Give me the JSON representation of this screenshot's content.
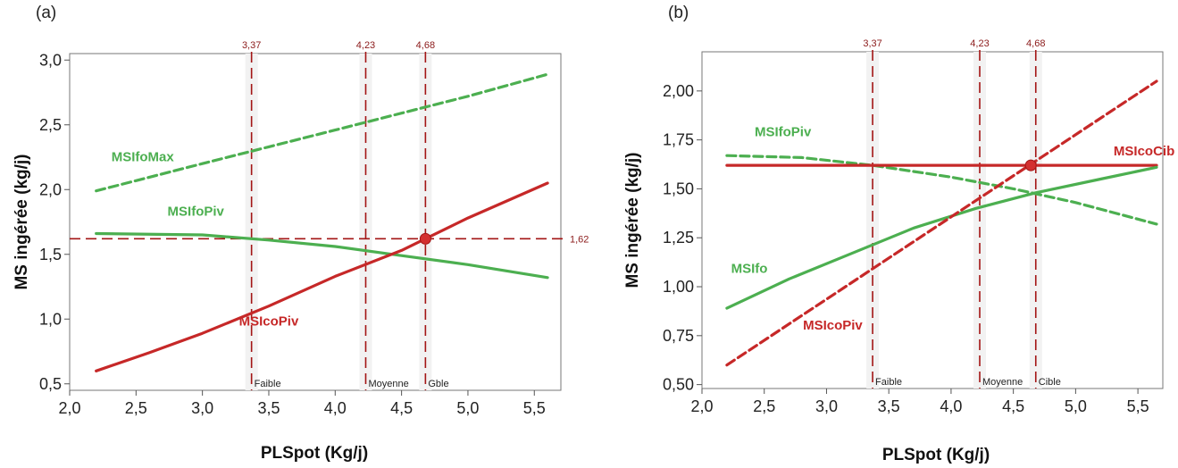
{
  "colors": {
    "green": "#4caf50",
    "red": "#c62828",
    "refline": "#a31515"
  },
  "chart_data": [
    {
      "panel": "(a)",
      "type": "line",
      "xlabel": "PLSpot (Kg/j)",
      "ylabel": "MS ingérée (kg/j)",
      "xlim": [
        2.0,
        5.7
      ],
      "ylim": [
        0.45,
        3.05
      ],
      "xticks": [
        2.0,
        2.5,
        3.0,
        3.5,
        4.0,
        4.5,
        5.0,
        5.5
      ],
      "xtick_labels": [
        "2,0",
        "2,5",
        "3,0",
        "3,5",
        "4,0",
        "4,5",
        "5,0",
        "5,5"
      ],
      "yticks": [
        0.5,
        1.0,
        1.5,
        2.0,
        2.5,
        3.0
      ],
      "ytick_labels": [
        "0,5",
        "1,0",
        "1,5",
        "2,0",
        "2,5",
        "3,0"
      ],
      "series": [
        {
          "name": "MSIfoMax",
          "color": "green",
          "dash": true,
          "x": [
            2.2,
            3.0,
            3.5,
            4.0,
            4.5,
            5.0,
            5.6
          ],
          "y": [
            1.99,
            2.2,
            2.33,
            2.46,
            2.59,
            2.72,
            2.89
          ],
          "label_at": [
            2.55,
            2.22
          ]
        },
        {
          "name": "MSIfoPiv",
          "color": "green",
          "dash": false,
          "x": [
            2.2,
            3.0,
            3.5,
            4.0,
            4.5,
            5.0,
            5.6
          ],
          "y": [
            1.66,
            1.65,
            1.61,
            1.56,
            1.49,
            1.42,
            1.32
          ],
          "label_at": [
            2.95,
            1.8
          ]
        },
        {
          "name": "MSIcoPiv",
          "color": "red",
          "dash": false,
          "x": [
            2.2,
            2.6,
            3.0,
            3.5,
            4.0,
            4.5,
            4.68,
            5.0,
            5.6
          ],
          "y": [
            0.6,
            0.74,
            0.89,
            1.1,
            1.33,
            1.53,
            1.62,
            1.78,
            2.05
          ],
          "label_at": [
            3.5,
            0.95
          ]
        }
      ],
      "vlines": [
        {
          "x": 3.37,
          "label": "3,37",
          "category": "Faible"
        },
        {
          "x": 4.23,
          "label": "4,23",
          "category": "Moyenne"
        },
        {
          "x": 4.68,
          "label": "4,68",
          "category": "Gble"
        }
      ],
      "hline": {
        "y": 1.62,
        "label": "1,62"
      },
      "marker": {
        "x": 4.68,
        "y": 1.62
      }
    },
    {
      "panel": "(b)",
      "type": "line",
      "xlabel": "PLSpot (Kg/j)",
      "ylabel": "MS ingérée (kg/j)",
      "xlim": [
        2.0,
        5.7
      ],
      "ylim": [
        0.48,
        2.2
      ],
      "xticks": [
        2.0,
        2.5,
        3.0,
        3.5,
        4.0,
        4.5,
        5.0,
        5.5
      ],
      "xtick_labels": [
        "2,0",
        "2,5",
        "3,0",
        "3,5",
        "4,0",
        "4,5",
        "5,0",
        "5,5"
      ],
      "yticks": [
        0.5,
        0.75,
        1.0,
        1.25,
        1.5,
        1.75,
        2.0
      ],
      "ytick_labels": [
        "0,50",
        "0,75",
        "1,00",
        "1,25",
        "1,50",
        "1,75",
        "2,00"
      ],
      "series": [
        {
          "name": "MSIfoPiv",
          "color": "green",
          "dash": true,
          "x": [
            2.2,
            2.8,
            3.37,
            4.0,
            4.5,
            5.0,
            5.65
          ],
          "y": [
            1.67,
            1.66,
            1.62,
            1.56,
            1.5,
            1.43,
            1.32
          ],
          "label_at": [
            2.65,
            1.77
          ]
        },
        {
          "name": "MSIcoCib",
          "color": "red",
          "dash": false,
          "x": [
            2.2,
            5.65
          ],
          "y": [
            1.62,
            1.62
          ],
          "label_at": [
            5.55,
            1.67
          ]
        },
        {
          "name": "MSIfo",
          "color": "green",
          "dash": false,
          "x": [
            2.2,
            2.7,
            3.2,
            3.7,
            4.2,
            4.68,
            5.2,
            5.65
          ],
          "y": [
            0.89,
            1.04,
            1.17,
            1.3,
            1.4,
            1.48,
            1.55,
            1.61
          ],
          "label_at": [
            2.38,
            1.07
          ]
        },
        {
          "name": "MSIcoPiv",
          "color": "red",
          "dash": true,
          "x": [
            2.2,
            5.65
          ],
          "y": [
            0.6,
            2.05
          ],
          "label_at": [
            3.05,
            0.78
          ]
        }
      ],
      "vlines": [
        {
          "x": 3.37,
          "label": "3,37",
          "category": "Faible"
        },
        {
          "x": 4.23,
          "label": "4,23",
          "category": "Moyenne"
        },
        {
          "x": 4.68,
          "label": "4,68",
          "category": "Cible"
        }
      ],
      "hline": null,
      "marker": {
        "x": 4.64,
        "y": 1.62
      }
    }
  ]
}
